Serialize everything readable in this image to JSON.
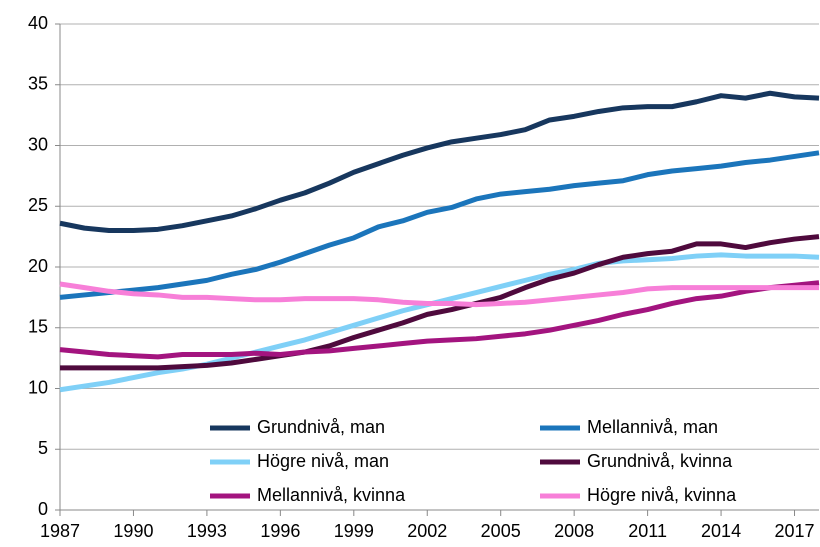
{
  "chart_data": {
    "type": "line",
    "x": [
      1987,
      1988,
      1989,
      1990,
      1991,
      1992,
      1993,
      1994,
      1995,
      1996,
      1997,
      1998,
      1999,
      2000,
      2001,
      2002,
      2003,
      2004,
      2005,
      2006,
      2007,
      2008,
      2009,
      2010,
      2011,
      2012,
      2013,
      2014,
      2015,
      2016,
      2017,
      2018
    ],
    "series": [
      {
        "name": "Grundnivå, man",
        "color": "#17375e",
        "values": [
          23.6,
          23.2,
          23.0,
          23.0,
          23.1,
          23.4,
          23.8,
          24.2,
          24.8,
          25.5,
          26.1,
          26.9,
          27.8,
          28.5,
          29.2,
          29.8,
          30.3,
          30.6,
          30.9,
          31.3,
          32.1,
          32.4,
          32.8,
          33.1,
          33.2,
          33.2,
          33.6,
          34.1,
          33.9,
          34.3,
          34.0,
          33.9
        ]
      },
      {
        "name": "Mellannivå, man",
        "color": "#1b75bb",
        "values": [
          17.5,
          17.7,
          17.9,
          18.1,
          18.3,
          18.6,
          18.9,
          19.4,
          19.8,
          20.4,
          21.1,
          21.8,
          22.4,
          23.3,
          23.8,
          24.5,
          24.9,
          25.6,
          26.0,
          26.2,
          26.4,
          26.7,
          26.9,
          27.1,
          27.6,
          27.9,
          28.1,
          28.3,
          28.6,
          28.8,
          29.1,
          29.4
        ]
      },
      {
        "name": "Högre nivå, man",
        "color": "#7fd0f7",
        "values": [
          9.9,
          10.2,
          10.5,
          10.9,
          11.3,
          11.6,
          12.0,
          12.5,
          13.0,
          13.5,
          14.0,
          14.6,
          15.2,
          15.8,
          16.4,
          16.9,
          17.4,
          17.9,
          18.4,
          18.9,
          19.4,
          19.8,
          20.3,
          20.5,
          20.6,
          20.7,
          20.9,
          21.0,
          20.9,
          20.9,
          20.9,
          20.8
        ]
      },
      {
        "name": "Grundnivå, kvinna",
        "color": "#4f0a3d",
        "values": [
          11.7,
          11.7,
          11.7,
          11.7,
          11.7,
          11.8,
          11.9,
          12.1,
          12.4,
          12.7,
          13.0,
          13.5,
          14.2,
          14.8,
          15.4,
          16.1,
          16.5,
          17.0,
          17.5,
          18.3,
          19.0,
          19.5,
          20.2,
          20.8,
          21.1,
          21.3,
          21.9,
          21.9,
          21.6,
          22.0,
          22.3,
          22.5
        ]
      },
      {
        "name": "Mellannivå, kvinna",
        "color": "#a3147f",
        "values": [
          13.2,
          13.0,
          12.8,
          12.7,
          12.6,
          12.8,
          12.8,
          12.8,
          12.9,
          12.8,
          13.0,
          13.1,
          13.3,
          13.5,
          13.7,
          13.9,
          14.0,
          14.1,
          14.3,
          14.5,
          14.8,
          15.2,
          15.6,
          16.1,
          16.5,
          17.0,
          17.4,
          17.6,
          18.0,
          18.3,
          18.5,
          18.7
        ]
      },
      {
        "name": "Högre nivå, kvinna",
        "color": "#f77fd8",
        "values": [
          18.6,
          18.3,
          18.0,
          17.8,
          17.7,
          17.5,
          17.5,
          17.4,
          17.3,
          17.3,
          17.4,
          17.4,
          17.4,
          17.3,
          17.1,
          17.0,
          17.0,
          16.9,
          17.0,
          17.1,
          17.3,
          17.5,
          17.7,
          17.9,
          18.2,
          18.3,
          18.3,
          18.3,
          18.3,
          18.3,
          18.3,
          18.3
        ]
      }
    ],
    "xlim": [
      1987,
      2018
    ],
    "xticks": [
      1987,
      1990,
      1993,
      1996,
      1999,
      2002,
      2005,
      2008,
      2011,
      2014,
      2017
    ],
    "ylim": [
      0,
      40
    ],
    "yticks": [
      0,
      5,
      10,
      15,
      20,
      25,
      30,
      35,
      40
    ],
    "grid": true
  }
}
